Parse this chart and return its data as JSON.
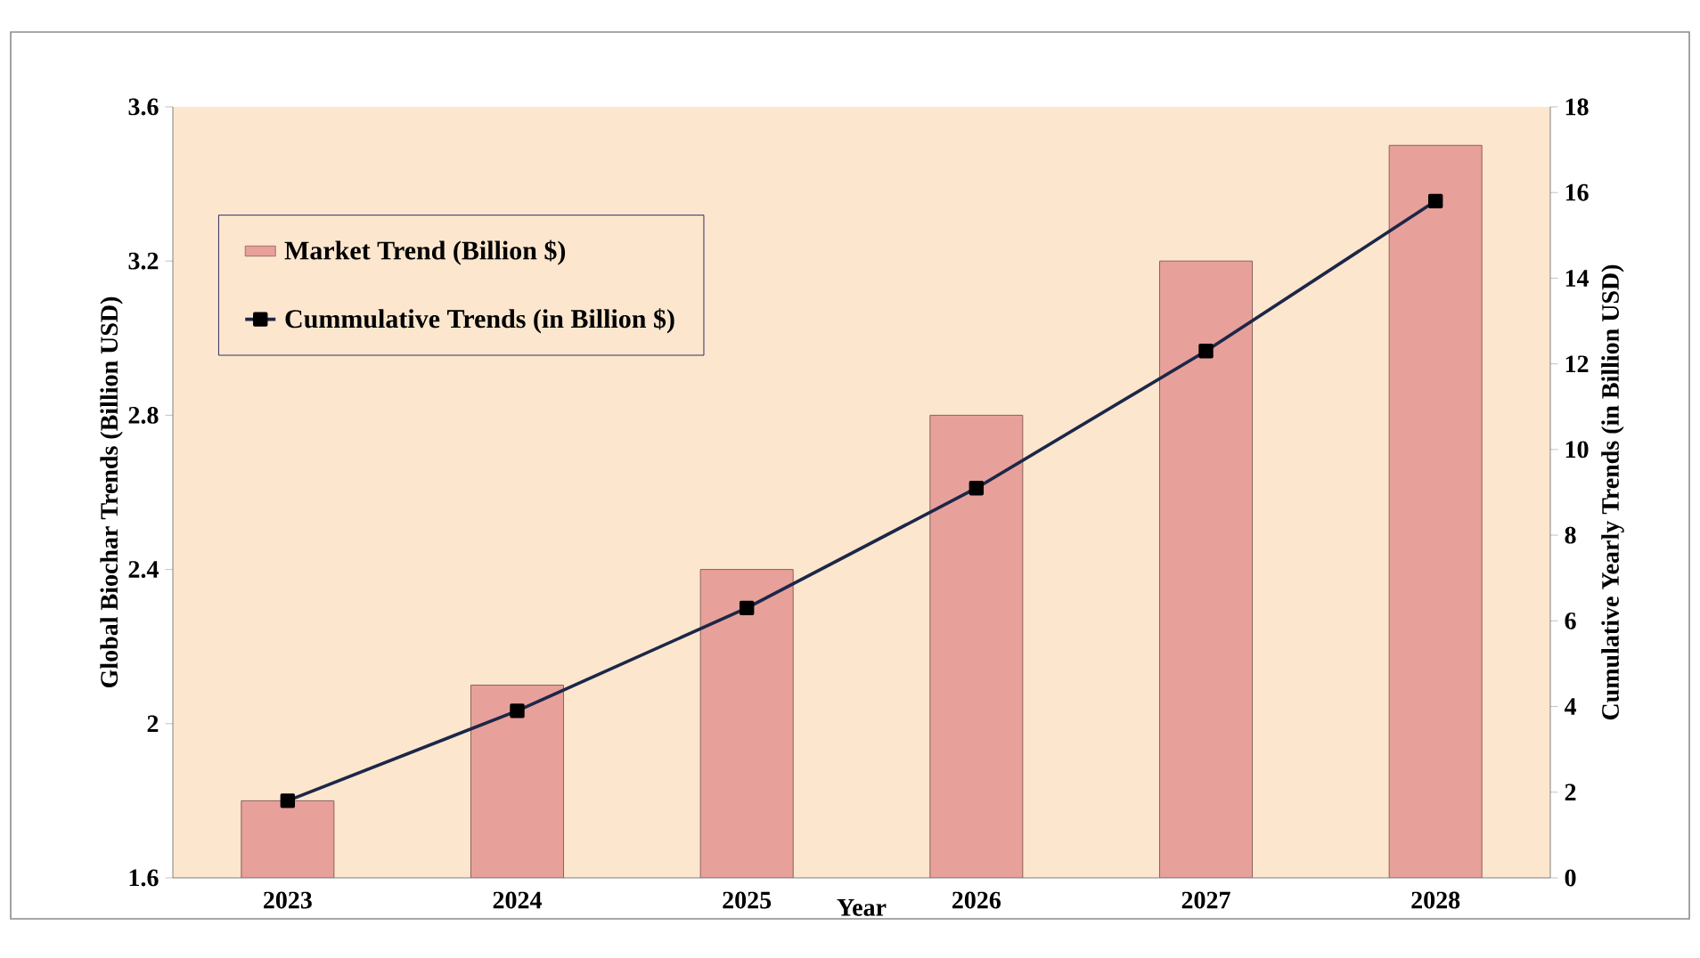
{
  "chart_data": {
    "type": "bar",
    "categories": [
      "2023",
      "2024",
      "2025",
      "2026",
      "2027",
      "2028"
    ],
    "series": [
      {
        "name": "Market Trend (Billion $)",
        "color": "#e8a09a",
        "values": [
          1.8,
          2.1,
          2.4,
          2.8,
          3.2,
          3.5
        ]
      },
      {
        "name": "Cummulative Trends (in Billion $)",
        "type": "line",
        "axis": "y2",
        "marker": "square",
        "color": "#1c2748",
        "values": [
          1.8,
          3.9,
          6.3,
          9.1,
          12.3,
          15.8
        ]
      }
    ],
    "xlabel": "Year",
    "ylabel": "Global Biochar  Trends (Billion USD)",
    "y2label": "Cumulative Yearly Trends (in Billion USD)",
    "ylim": [
      1.6,
      3.6
    ],
    "yticks": [
      1.6,
      2,
      2.4,
      2.8,
      3.2,
      3.6
    ],
    "y2lim": [
      0,
      18
    ],
    "y2ticks": [
      0,
      2,
      4,
      6,
      8,
      10,
      12,
      14,
      16,
      18
    ],
    "legend": "top left"
  }
}
